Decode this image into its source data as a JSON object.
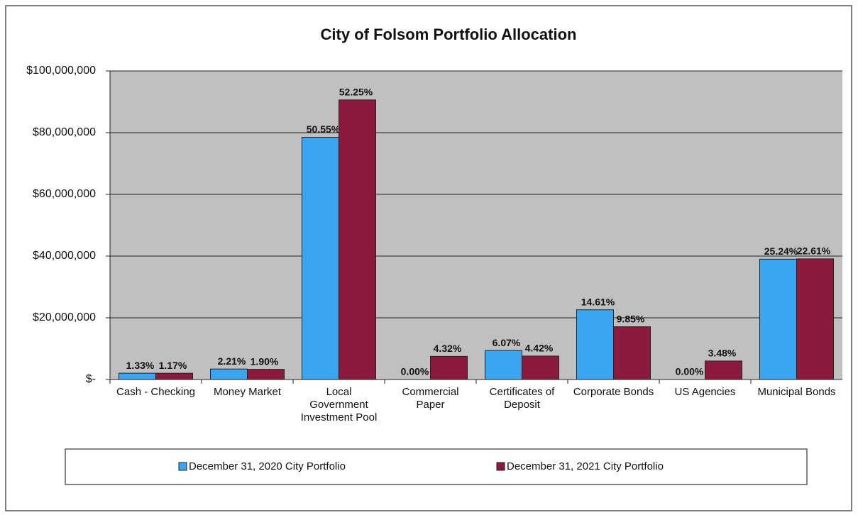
{
  "chart_data": {
    "type": "bar",
    "title": "City of Folsom Portfolio Allocation",
    "categories": [
      "Cash - Checking",
      "Money Market",
      "Local Government Investment Pool",
      "Commercial Paper",
      "Certificates of Deposit",
      "Corporate Bonds",
      "US Agencies",
      "Municipal Bonds"
    ],
    "series": [
      {
        "name": "December 31, 2020 City Portfolio",
        "color": "#3aa6f2",
        "values": [
          2050000,
          3400000,
          78500000,
          0,
          9400000,
          22600000,
          0,
          39000000
        ],
        "labels": [
          "1.33%",
          "2.21%",
          "50.55%",
          "0.00%",
          "6.07%",
          "14.61%",
          "0.00%",
          "25.24%"
        ]
      },
      {
        "name": "December 31, 2021 City Portfolio",
        "color": "#8c1a3c",
        "values": [
          2030000,
          3300000,
          90600000,
          7500000,
          7600000,
          17100000,
          6000000,
          39100000
        ],
        "labels": [
          "1.17%",
          "1.90%",
          "52.25%",
          "4.32%",
          "4.42%",
          "9.85%",
          "3.48%",
          "22.61%"
        ]
      }
    ],
    "ylim": [
      0,
      100000000
    ],
    "yticks": [
      {
        "value": 0,
        "label": "$-"
      },
      {
        "value": 20000000,
        "label": "$20,000,000"
      },
      {
        "value": 40000000,
        "label": "$40,000,000"
      },
      {
        "value": 60000000,
        "label": "$60,000,000"
      },
      {
        "value": 80000000,
        "label": "$80,000,000"
      },
      {
        "value": 100000000,
        "label": "$100,000,000"
      }
    ],
    "grid": true,
    "legend": "bottom"
  }
}
